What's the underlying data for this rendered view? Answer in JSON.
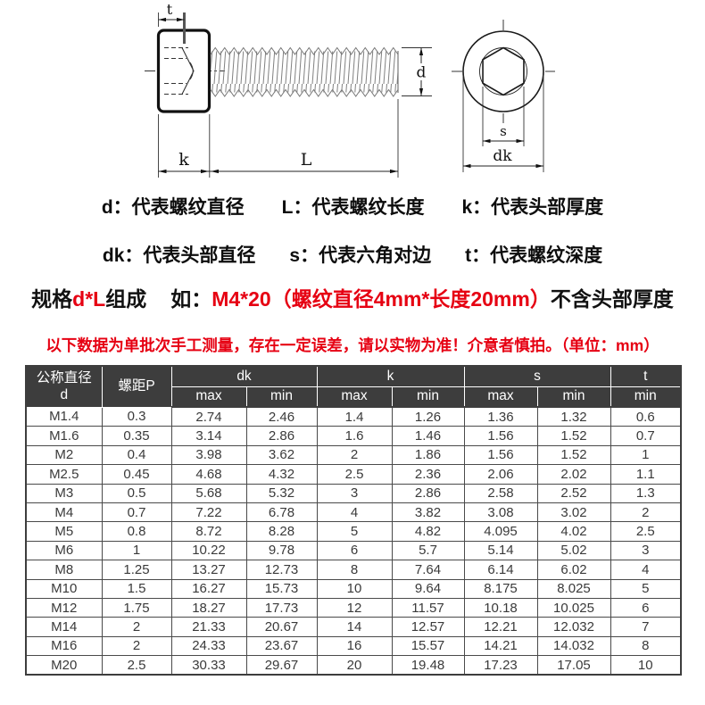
{
  "colors": {
    "accent_red": "#e60012",
    "table_header_bg": "#3d3d3d",
    "drawing_line": "#1a1a1a"
  },
  "diagram": {
    "labels": {
      "t": "t",
      "k": "k",
      "L": "L",
      "d": "d",
      "s": "s",
      "dk": "dk"
    }
  },
  "legend": {
    "rows": [
      [
        "d：代表螺纹直径",
        "L：代表螺纹长度",
        "k：代表头部厚度"
      ],
      [
        "dk：代表头部直径",
        "s：代表六角对边",
        "t：代表螺纹深度"
      ]
    ]
  },
  "spec": {
    "segments": [
      {
        "text": "规格",
        "color": "dark"
      },
      {
        "text": "d*L",
        "color": "red"
      },
      {
        "text": "组成",
        "color": "dark"
      },
      {
        "text": "如：",
        "color": "dark"
      },
      {
        "text": "M4*20（螺纹直径4mm*长度20mm）",
        "color": "red"
      },
      {
        "text": "不含头部厚度",
        "color": "dark"
      }
    ]
  },
  "disclaimer": "以下数据为单批次手工测量，存在一定误差，请以实物为准！介意者慎拍。（单位：mm）",
  "table": {
    "header": {
      "col_d_line1": "公称直径",
      "col_d_line2": "d",
      "col_p": "螺距P",
      "group_dk": "dk",
      "group_k": "k",
      "group_s": "s",
      "col_t": "t",
      "subs": [
        "max",
        "min",
        "max",
        "min",
        "max",
        "min",
        "min"
      ]
    },
    "rows": [
      [
        "M1.4",
        "0.3",
        "2.74",
        "2.46",
        "1.4",
        "1.26",
        "1.36",
        "1.32",
        "0.6"
      ],
      [
        "M1.6",
        "0.35",
        "3.14",
        "2.86",
        "1.6",
        "1.46",
        "1.56",
        "1.52",
        "0.7"
      ],
      [
        "M2",
        "0.4",
        "3.98",
        "3.62",
        "2",
        "1.86",
        "1.56",
        "1.52",
        "1"
      ],
      [
        "M2.5",
        "0.45",
        "4.68",
        "4.32",
        "2.5",
        "2.36",
        "2.06",
        "2.02",
        "1.1"
      ],
      [
        "M3",
        "0.5",
        "5.68",
        "5.32",
        "3",
        "2.86",
        "2.58",
        "2.52",
        "1.3"
      ],
      [
        "M4",
        "0.7",
        "7.22",
        "6.78",
        "4",
        "3.82",
        "3.08",
        "3.02",
        "2"
      ],
      [
        "M5",
        "0.8",
        "8.72",
        "8.28",
        "5",
        "4.82",
        "4.095",
        "4.02",
        "2.5"
      ],
      [
        "M6",
        "1",
        "10.22",
        "9.78",
        "6",
        "5.7",
        "5.14",
        "5.02",
        "3"
      ],
      [
        "M8",
        "1.25",
        "13.27",
        "12.73",
        "8",
        "7.64",
        "6.14",
        "6.02",
        "4"
      ],
      [
        "M10",
        "1.5",
        "16.27",
        "15.73",
        "10",
        "9.64",
        "8.175",
        "8.025",
        "5"
      ],
      [
        "M12",
        "1.75",
        "18.27",
        "17.73",
        "12",
        "11.57",
        "10.18",
        "10.025",
        "6"
      ],
      [
        "M14",
        "2",
        "21.33",
        "20.67",
        "14",
        "12.57",
        "12.21",
        "12.032",
        "7"
      ],
      [
        "M16",
        "2",
        "24.33",
        "23.67",
        "16",
        "15.57",
        "14.21",
        "14.032",
        "8"
      ],
      [
        "M20",
        "2.5",
        "30.33",
        "29.67",
        "20",
        "19.48",
        "17.23",
        "17.05",
        "10"
      ]
    ]
  }
}
